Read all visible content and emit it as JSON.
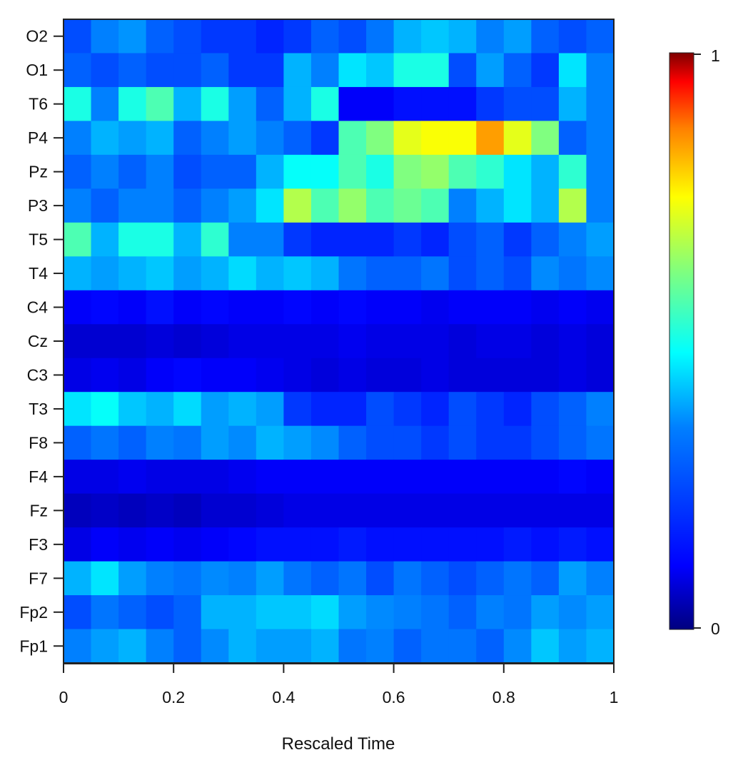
{
  "chart_data": {
    "type": "heatmap",
    "title": "",
    "xlabel": "Rescaled Time",
    "ylabel": "",
    "xlim": [
      0,
      1
    ],
    "x_ticks": [
      0,
      0.2,
      0.4,
      0.6,
      0.8,
      1
    ],
    "x_tick_labels": [
      "0",
      "0.2",
      "0.4",
      "0.6",
      "0.8",
      "1"
    ],
    "rows_top_to_bottom": [
      "O2",
      "O1",
      "T6",
      "P4",
      "Pz",
      "P3",
      "T5",
      "T4",
      "C4",
      "Cz",
      "C3",
      "T3",
      "F8",
      "F4",
      "Fz",
      "F3",
      "F7",
      "Fp2",
      "Fp1"
    ],
    "colorbar": {
      "min": 0,
      "max": 1,
      "tick_labels": [
        "0",
        "1"
      ],
      "colormap": "jet",
      "colors": [
        "#00007f",
        "#0000ff",
        "#007fff",
        "#00ffff",
        "#7fff7f",
        "#ffff00",
        "#ff7f00",
        "#ff0000",
        "#7f0000"
      ]
    },
    "time_bins": [
      0.0,
      0.05,
      0.1,
      0.15,
      0.2,
      0.25,
      0.3,
      0.35,
      0.4,
      0.45,
      0.5,
      0.55,
      0.6,
      0.65,
      0.7,
      0.75,
      0.8,
      0.85,
      0.9,
      0.95
    ],
    "bin_width": 0.05,
    "series": [
      {
        "name": "O2",
        "values": [
          0.2,
          0.25,
          0.27,
          0.22,
          0.2,
          0.18,
          0.18,
          0.16,
          0.18,
          0.22,
          0.2,
          0.24,
          0.3,
          0.32,
          0.3,
          0.25,
          0.28,
          0.22,
          0.2,
          0.22
        ]
      },
      {
        "name": "O1",
        "values": [
          0.22,
          0.2,
          0.22,
          0.2,
          0.2,
          0.22,
          0.18,
          0.18,
          0.3,
          0.25,
          0.35,
          0.32,
          0.4,
          0.4,
          0.2,
          0.28,
          0.22,
          0.18,
          0.35,
          0.25
        ]
      },
      {
        "name": "T6",
        "values": [
          0.4,
          0.25,
          0.4,
          0.45,
          0.3,
          0.4,
          0.28,
          0.22,
          0.3,
          0.4,
          0.12,
          0.12,
          0.14,
          0.14,
          0.14,
          0.18,
          0.2,
          0.2,
          0.3,
          0.25
        ]
      },
      {
        "name": "P4",
        "values": [
          0.25,
          0.3,
          0.28,
          0.3,
          0.22,
          0.25,
          0.28,
          0.25,
          0.22,
          0.18,
          0.45,
          0.5,
          0.6,
          0.62,
          0.62,
          0.72,
          0.6,
          0.5,
          0.22,
          0.25
        ]
      },
      {
        "name": "Pz",
        "values": [
          0.22,
          0.25,
          0.22,
          0.25,
          0.2,
          0.22,
          0.22,
          0.3,
          0.38,
          0.38,
          0.45,
          0.4,
          0.5,
          0.52,
          0.45,
          0.42,
          0.35,
          0.3,
          0.42,
          0.25
        ]
      },
      {
        "name": "P3",
        "values": [
          0.25,
          0.22,
          0.25,
          0.25,
          0.22,
          0.25,
          0.28,
          0.35,
          0.55,
          0.45,
          0.52,
          0.45,
          0.48,
          0.45,
          0.25,
          0.3,
          0.35,
          0.3,
          0.55,
          0.25
        ]
      },
      {
        "name": "T5",
        "values": [
          0.45,
          0.3,
          0.4,
          0.4,
          0.3,
          0.42,
          0.25,
          0.25,
          0.18,
          0.16,
          0.16,
          0.16,
          0.18,
          0.16,
          0.2,
          0.22,
          0.18,
          0.22,
          0.25,
          0.28
        ]
      },
      {
        "name": "T4",
        "values": [
          0.3,
          0.28,
          0.3,
          0.32,
          0.28,
          0.3,
          0.34,
          0.3,
          0.32,
          0.3,
          0.24,
          0.22,
          0.22,
          0.24,
          0.2,
          0.22,
          0.2,
          0.26,
          0.24,
          0.26
        ]
      },
      {
        "name": "C4",
        "values": [
          0.12,
          0.13,
          0.12,
          0.14,
          0.12,
          0.13,
          0.12,
          0.12,
          0.13,
          0.12,
          0.13,
          0.12,
          0.12,
          0.11,
          0.12,
          0.12,
          0.12,
          0.11,
          0.12,
          0.11
        ]
      },
      {
        "name": "Cz",
        "values": [
          0.08,
          0.08,
          0.08,
          0.09,
          0.08,
          0.09,
          0.1,
          0.1,
          0.1,
          0.1,
          0.11,
          0.1,
          0.1,
          0.1,
          0.09,
          0.1,
          0.1,
          0.09,
          0.1,
          0.09
        ]
      },
      {
        "name": "C3",
        "values": [
          0.1,
          0.11,
          0.1,
          0.12,
          0.13,
          0.12,
          0.12,
          0.11,
          0.1,
          0.09,
          0.1,
          0.09,
          0.09,
          0.1,
          0.09,
          0.09,
          0.09,
          0.09,
          0.1,
          0.09
        ]
      },
      {
        "name": "T3",
        "values": [
          0.35,
          0.38,
          0.32,
          0.3,
          0.34,
          0.28,
          0.3,
          0.28,
          0.18,
          0.16,
          0.16,
          0.2,
          0.18,
          0.16,
          0.2,
          0.18,
          0.16,
          0.2,
          0.22,
          0.25
        ]
      },
      {
        "name": "F8",
        "values": [
          0.22,
          0.24,
          0.22,
          0.25,
          0.24,
          0.28,
          0.26,
          0.3,
          0.28,
          0.26,
          0.22,
          0.2,
          0.2,
          0.18,
          0.2,
          0.18,
          0.18,
          0.2,
          0.22,
          0.24
        ]
      },
      {
        "name": "F4",
        "values": [
          0.1,
          0.1,
          0.11,
          0.1,
          0.1,
          0.1,
          0.11,
          0.12,
          0.12,
          0.12,
          0.12,
          0.12,
          0.12,
          0.12,
          0.12,
          0.12,
          0.12,
          0.12,
          0.13,
          0.12
        ]
      },
      {
        "name": "Fz",
        "values": [
          0.06,
          0.07,
          0.06,
          0.07,
          0.06,
          0.08,
          0.08,
          0.09,
          0.1,
          0.1,
          0.1,
          0.1,
          0.1,
          0.1,
          0.1,
          0.1,
          0.1,
          0.1,
          0.1,
          0.1
        ]
      },
      {
        "name": "F3",
        "values": [
          0.1,
          0.12,
          0.11,
          0.12,
          0.11,
          0.12,
          0.13,
          0.14,
          0.14,
          0.14,
          0.15,
          0.14,
          0.14,
          0.14,
          0.14,
          0.14,
          0.15,
          0.14,
          0.15,
          0.14
        ]
      },
      {
        "name": "F7",
        "values": [
          0.3,
          0.35,
          0.28,
          0.25,
          0.24,
          0.26,
          0.25,
          0.28,
          0.24,
          0.22,
          0.24,
          0.2,
          0.24,
          0.22,
          0.2,
          0.22,
          0.24,
          0.22,
          0.28,
          0.25
        ]
      },
      {
        "name": "Fp2",
        "values": [
          0.2,
          0.24,
          0.22,
          0.2,
          0.22,
          0.3,
          0.3,
          0.32,
          0.32,
          0.34,
          0.28,
          0.26,
          0.25,
          0.24,
          0.22,
          0.25,
          0.24,
          0.28,
          0.26,
          0.28
        ]
      },
      {
        "name": "Fp1",
        "values": [
          0.25,
          0.28,
          0.3,
          0.25,
          0.22,
          0.26,
          0.3,
          0.28,
          0.28,
          0.3,
          0.24,
          0.25,
          0.22,
          0.24,
          0.24,
          0.22,
          0.26,
          0.32,
          0.28,
          0.3
        ]
      }
    ]
  }
}
